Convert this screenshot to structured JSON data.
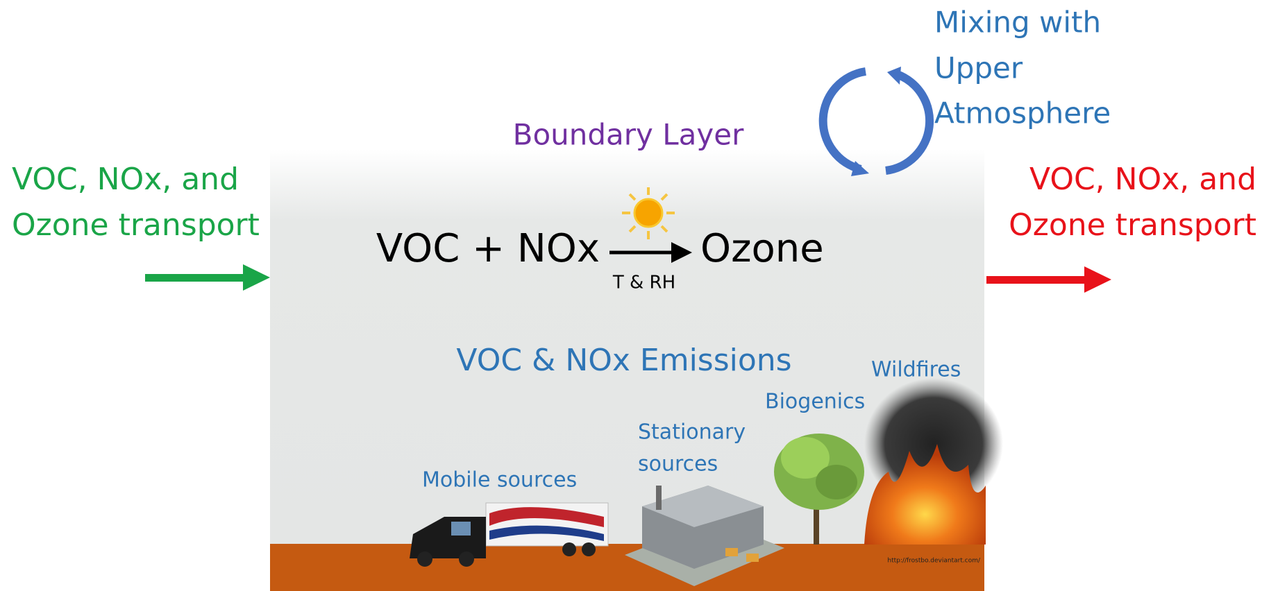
{
  "title": "Boundary Layer",
  "inflow": {
    "lines": [
      "VOC, NOx, and",
      "Ozone transport"
    ]
  },
  "outflow": {
    "lines": [
      "VOC, NOx, and",
      "Ozone transport"
    ]
  },
  "mixing": {
    "lines": [
      "Mixing with",
      "Upper",
      "Atmosphere"
    ]
  },
  "reaction": {
    "reactants": "VOC + NOx",
    "product": "Ozone",
    "conditions": "T & RH"
  },
  "emissions": {
    "title": "VOC & NOx Emissions",
    "sources": {
      "mobile": [
        "Mobile sources"
      ],
      "stationary": [
        "Stationary",
        "sources"
      ],
      "biogenics": [
        "Biogenics"
      ],
      "wildfires": [
        "Wildfires"
      ]
    }
  },
  "credit": "http://frostbo.deviantart.com/"
}
